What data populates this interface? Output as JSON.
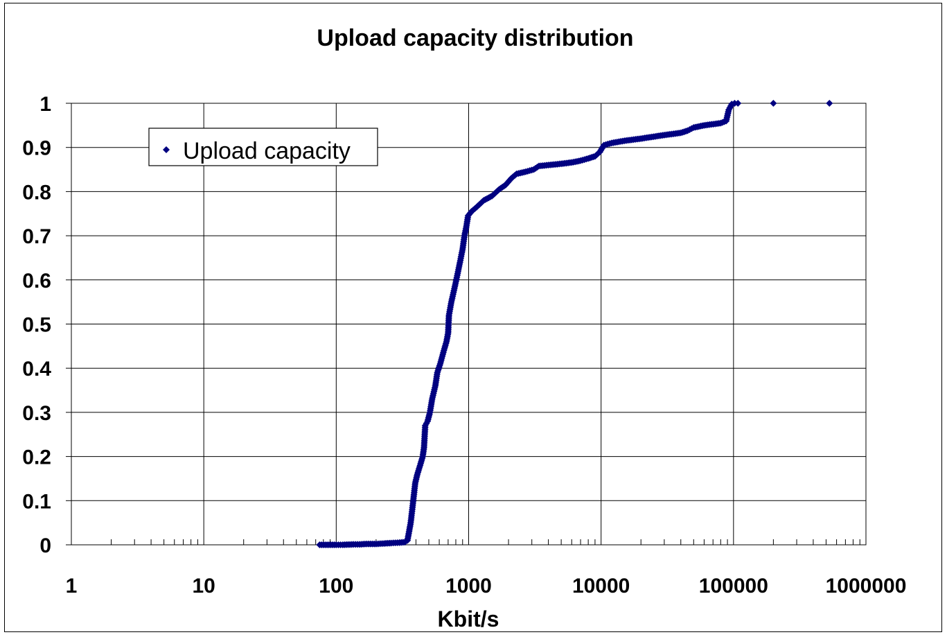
{
  "chart_data": {
    "type": "scatter",
    "title": "Upload capacity distribution",
    "xlabel": "Kbit/s",
    "ylabel": "",
    "xscale": "log",
    "xlim": [
      1,
      1000000
    ],
    "ylim": [
      0,
      1
    ],
    "x_tick_labels": [
      "1",
      "10",
      "100",
      "1000",
      "10000",
      "100000",
      "1000000"
    ],
    "y_tick_labels": [
      "0",
      "0.1",
      "0.2",
      "0.3",
      "0.4",
      "0.5",
      "0.6",
      "0.7",
      "0.8",
      "0.9",
      "1"
    ],
    "grid": true,
    "legend_position": "top-left",
    "marker": "diamond",
    "series": [
      {
        "name": "Upload capacity",
        "color": "#000080",
        "points": [
          [
            75,
            0.0
          ],
          [
            80,
            0.0
          ],
          [
            100,
            0.0
          ],
          [
            112,
            0.0
          ],
          [
            135,
            0.001
          ],
          [
            150,
            0.001
          ],
          [
            170,
            0.002
          ],
          [
            200,
            0.002
          ],
          [
            230,
            0.003
          ],
          [
            260,
            0.004
          ],
          [
            300,
            0.005
          ],
          [
            330,
            0.006
          ],
          [
            345,
            0.01
          ],
          [
            355,
            0.03
          ],
          [
            365,
            0.05
          ],
          [
            375,
            0.08
          ],
          [
            385,
            0.11
          ],
          [
            395,
            0.14
          ],
          [
            410,
            0.16
          ],
          [
            430,
            0.18
          ],
          [
            450,
            0.2
          ],
          [
            460,
            0.22
          ],
          [
            470,
            0.27
          ],
          [
            490,
            0.28
          ],
          [
            510,
            0.3
          ],
          [
            530,
            0.33
          ],
          [
            560,
            0.36
          ],
          [
            580,
            0.39
          ],
          [
            610,
            0.41
          ],
          [
            650,
            0.44
          ],
          [
            680,
            0.46
          ],
          [
            700,
            0.48
          ],
          [
            710,
            0.52
          ],
          [
            740,
            0.55
          ],
          [
            780,
            0.58
          ],
          [
            820,
            0.61
          ],
          [
            860,
            0.64
          ],
          [
            900,
            0.67
          ],
          [
            930,
            0.7
          ],
          [
            960,
            0.72
          ],
          [
            990,
            0.745
          ],
          [
            1050,
            0.755
          ],
          [
            1150,
            0.765
          ],
          [
            1300,
            0.78
          ],
          [
            1500,
            0.79
          ],
          [
            1700,
            0.805
          ],
          [
            1900,
            0.815
          ],
          [
            2100,
            0.83
          ],
          [
            2300,
            0.84
          ],
          [
            2700,
            0.845
          ],
          [
            3100,
            0.85
          ],
          [
            3400,
            0.858
          ],
          [
            4000,
            0.86
          ],
          [
            5000,
            0.863
          ],
          [
            6000,
            0.866
          ],
          [
            7000,
            0.87
          ],
          [
            8000,
            0.875
          ],
          [
            9000,
            0.88
          ],
          [
            9800,
            0.89
          ],
          [
            10500,
            0.905
          ],
          [
            12000,
            0.91
          ],
          [
            15000,
            0.915
          ],
          [
            20000,
            0.92
          ],
          [
            30000,
            0.928
          ],
          [
            40000,
            0.933
          ],
          [
            45000,
            0.938
          ],
          [
            50000,
            0.945
          ],
          [
            60000,
            0.95
          ],
          [
            80000,
            0.955
          ],
          [
            88000,
            0.96
          ],
          [
            92000,
            0.985
          ],
          [
            97000,
            0.998
          ],
          [
            102000,
            1.0
          ],
          [
            108000,
            1.0
          ],
          [
            200000,
            1.0
          ],
          [
            530000,
            1.0
          ]
        ]
      }
    ]
  }
}
